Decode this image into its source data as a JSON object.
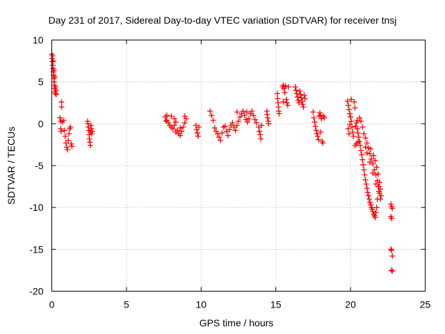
{
  "chart_data": {
    "type": "scatter",
    "title": "Day 231 of 2017, Sidereal Day-to-day VTEC variation (SDTVAR) for receiver tnsj",
    "xlabel": "GPS time / hours",
    "ylabel": "SDTVAR / TECUs",
    "xlim": [
      0,
      25
    ],
    "ylim": [
      -20,
      10
    ],
    "xticks": [
      0,
      5,
      10,
      15,
      20,
      25
    ],
    "yticks": [
      -20,
      -15,
      -10,
      -5,
      0,
      5,
      10
    ],
    "grid": true,
    "marker": "+",
    "color": "#ff0000",
    "series": [
      {
        "name": "SDTVAR",
        "points": [
          [
            0.0,
            8.3
          ],
          [
            0.02,
            7.8
          ],
          [
            0.04,
            7.4
          ],
          [
            0.06,
            7.0
          ],
          [
            0.08,
            6.6
          ],
          [
            0.1,
            6.2
          ],
          [
            0.12,
            5.8
          ],
          [
            0.14,
            5.4
          ],
          [
            0.16,
            5.0
          ],
          [
            0.18,
            4.6
          ],
          [
            0.2,
            4.2
          ],
          [
            0.22,
            3.8
          ],
          [
            0.24,
            3.6
          ],
          [
            0.05,
            8.1
          ],
          [
            0.1,
            7.5
          ],
          [
            0.15,
            6.4
          ],
          [
            0.2,
            5.6
          ],
          [
            0.25,
            4.4
          ],
          [
            0.28,
            4.0
          ],
          [
            0.3,
            3.5
          ],
          [
            0.55,
            0.7
          ],
          [
            0.6,
            0.3
          ],
          [
            0.6,
            -0.6
          ],
          [
            0.62,
            -0.9
          ],
          [
            0.65,
            2.6
          ],
          [
            0.66,
            2.0
          ],
          [
            0.7,
            0.2
          ],
          [
            0.8,
            0.4
          ],
          [
            0.85,
            -0.8
          ],
          [
            0.9,
            -1.5
          ],
          [
            0.95,
            -2.3
          ],
          [
            1.0,
            -2.8
          ],
          [
            1.05,
            -3.1
          ],
          [
            1.1,
            -2.0
          ],
          [
            1.15,
            -1.2
          ],
          [
            1.2,
            -0.6
          ],
          [
            1.25,
            -0.4
          ],
          [
            1.3,
            -2.4
          ],
          [
            1.35,
            -2.7
          ],
          [
            2.4,
            0.3
          ],
          [
            2.42,
            0.0
          ],
          [
            2.45,
            -0.4
          ],
          [
            2.48,
            -0.8
          ],
          [
            2.5,
            -1.3
          ],
          [
            2.52,
            -1.8
          ],
          [
            2.55,
            -2.2
          ],
          [
            2.58,
            -2.6
          ],
          [
            2.6,
            -1.0
          ],
          [
            2.62,
            -0.2
          ],
          [
            2.65,
            -0.6
          ],
          [
            2.68,
            -1.2
          ],
          [
            2.7,
            -0.9
          ],
          [
            7.6,
            0.8
          ],
          [
            7.7,
            0.4
          ],
          [
            7.8,
            0.1
          ],
          [
            7.9,
            -0.2
          ],
          [
            8.0,
            -0.4
          ],
          [
            8.1,
            -0.6
          ],
          [
            8.2,
            0.6
          ],
          [
            8.3,
            0.2
          ],
          [
            8.4,
            -0.8
          ],
          [
            8.5,
            -1.2
          ],
          [
            8.6,
            -1.4
          ],
          [
            8.7,
            -0.9
          ],
          [
            8.8,
            -0.4
          ],
          [
            8.9,
            0.1
          ],
          [
            9.0,
            0.6
          ],
          [
            7.7,
            1.0
          ],
          [
            8.0,
            0.9
          ],
          [
            8.3,
            -1.0
          ],
          [
            8.6,
            -0.5
          ],
          [
            8.9,
            0.9
          ],
          [
            7.65,
            0.3
          ],
          [
            8.2,
            -0.2
          ],
          [
            9.65,
            -0.2
          ],
          [
            9.7,
            -0.7
          ],
          [
            9.75,
            -1.1
          ],
          [
            9.8,
            -1.5
          ],
          [
            9.85,
            -0.4
          ],
          [
            10.6,
            1.5
          ],
          [
            10.7,
            1.0
          ],
          [
            10.8,
            0.4
          ],
          [
            10.9,
            -0.5
          ],
          [
            11.0,
            -0.9
          ],
          [
            11.1,
            -1.2
          ],
          [
            11.2,
            -1.6
          ],
          [
            11.3,
            -2.0
          ],
          [
            11.4,
            -1.1
          ],
          [
            11.5,
            -0.4
          ],
          [
            11.6,
            -0.3
          ],
          [
            11.7,
            -0.9
          ],
          [
            11.8,
            -1.4
          ],
          [
            11.9,
            -0.7
          ],
          [
            12.0,
            -0.2
          ],
          [
            12.1,
            0.1
          ],
          [
            12.2,
            -0.4
          ],
          [
            12.3,
            -0.8
          ],
          [
            12.4,
            -0.2
          ],
          [
            12.5,
            0.3
          ],
          [
            12.6,
            0.8
          ],
          [
            12.7,
            1.2
          ],
          [
            12.8,
            1.5
          ],
          [
            12.9,
            1.0
          ],
          [
            13.0,
            0.5
          ],
          [
            13.1,
            0.2
          ],
          [
            13.2,
            0.6
          ],
          [
            13.3,
            1.2
          ],
          [
            13.4,
            1.5
          ],
          [
            13.5,
            1.0
          ],
          [
            13.6,
            0.5
          ],
          [
            13.7,
            0.1
          ],
          [
            12.4,
            1.4
          ],
          [
            13.05,
            1.4
          ],
          [
            13.85,
            -0.4
          ],
          [
            13.9,
            -0.9
          ],
          [
            13.95,
            -1.3
          ],
          [
            14.0,
            -1.8
          ],
          [
            14.05,
            -0.2
          ],
          [
            14.4,
            1.5
          ],
          [
            14.42,
            1.1
          ],
          [
            14.45,
            0.7
          ],
          [
            14.5,
            0.3
          ],
          [
            14.52,
            0.0
          ],
          [
            15.1,
            3.6
          ],
          [
            15.12,
            3.0
          ],
          [
            15.15,
            2.5
          ],
          [
            15.18,
            2.0
          ],
          [
            15.2,
            1.5
          ],
          [
            15.22,
            1.2
          ],
          [
            15.45,
            4.4
          ],
          [
            15.5,
            4.6
          ],
          [
            15.55,
            4.2
          ],
          [
            15.6,
            3.7
          ],
          [
            15.65,
            4.5
          ],
          [
            15.7,
            2.9
          ],
          [
            15.75,
            2.5
          ],
          [
            15.8,
            2.2
          ],
          [
            15.85,
            4.4
          ],
          [
            15.5,
            2.6
          ],
          [
            16.3,
            4.4
          ],
          [
            16.35,
            4.0
          ],
          [
            16.4,
            3.6
          ],
          [
            16.45,
            3.2
          ],
          [
            16.5,
            2.8
          ],
          [
            16.55,
            2.5
          ],
          [
            16.6,
            3.9
          ],
          [
            16.65,
            3.5
          ],
          [
            16.7,
            3.1
          ],
          [
            16.75,
            2.7
          ],
          [
            16.8,
            2.3
          ],
          [
            16.85,
            2.0
          ],
          [
            16.9,
            3.4
          ],
          [
            16.95,
            3.0
          ],
          [
            17.5,
            1.4
          ],
          [
            17.55,
            0.7
          ],
          [
            17.6,
            0.2
          ],
          [
            17.65,
            -0.3
          ],
          [
            17.7,
            -0.8
          ],
          [
            17.75,
            -1.2
          ],
          [
            17.8,
            -1.5
          ],
          [
            17.85,
            -1.9
          ],
          [
            17.9,
            0.9
          ],
          [
            17.95,
            1.3
          ],
          [
            18.0,
            1.0
          ],
          [
            18.05,
            0.6
          ],
          [
            18.1,
            -2.1
          ],
          [
            18.15,
            -2.3
          ],
          [
            18.2,
            0.9
          ],
          [
            18.25,
            0.7
          ],
          [
            18.0,
            -1.0
          ],
          [
            19.8,
            2.7
          ],
          [
            19.85,
            2.2
          ],
          [
            19.9,
            1.7
          ],
          [
            19.95,
            1.2
          ],
          [
            20.0,
            0.8
          ],
          [
            20.05,
            0.3
          ],
          [
            20.1,
            -0.4
          ],
          [
            20.15,
            -1.0
          ],
          [
            20.2,
            -1.5
          ],
          [
            20.25,
            2.6
          ],
          [
            20.3,
            1.9
          ],
          [
            19.85,
            -0.6
          ],
          [
            19.9,
            -1.2
          ],
          [
            20.05,
            2.9
          ],
          [
            19.95,
            -0.1
          ],
          [
            20.4,
            0.1
          ],
          [
            20.45,
            -0.6
          ],
          [
            20.5,
            -1.1
          ],
          [
            20.55,
            -1.6
          ],
          [
            20.6,
            -2.1
          ],
          [
            20.65,
            -2.6
          ],
          [
            20.7,
            -3.2
          ],
          [
            20.75,
            -3.7
          ],
          [
            20.8,
            -4.3
          ],
          [
            20.85,
            -4.9
          ],
          [
            20.9,
            -5.5
          ],
          [
            20.95,
            -6.1
          ],
          [
            21.0,
            -6.7
          ],
          [
            21.05,
            -7.2
          ],
          [
            21.1,
            -7.7
          ],
          [
            21.15,
            -8.2
          ],
          [
            21.2,
            -8.6
          ],
          [
            21.25,
            -9.0
          ],
          [
            21.3,
            -9.4
          ],
          [
            21.35,
            -9.7
          ],
          [
            21.4,
            -10.0
          ],
          [
            21.45,
            -10.2
          ],
          [
            21.5,
            -10.5
          ],
          [
            21.55,
            -10.8
          ],
          [
            21.6,
            -11.0
          ],
          [
            21.65,
            -11.2
          ],
          [
            21.7,
            -10.6
          ],
          [
            21.75,
            -10.0
          ],
          [
            21.8,
            -9.0
          ],
          [
            21.85,
            -7.5
          ],
          [
            20.6,
            0.7
          ],
          [
            20.7,
            0.3
          ],
          [
            20.8,
            -0.4
          ],
          [
            20.9,
            -1.2
          ],
          [
            21.0,
            -1.7
          ],
          [
            21.1,
            -2.3
          ],
          [
            21.2,
            -2.9
          ],
          [
            21.3,
            -3.6
          ],
          [
            21.4,
            -4.2
          ],
          [
            21.5,
            -4.8
          ],
          [
            21.6,
            -5.5
          ],
          [
            21.7,
            -6.1
          ],
          [
            21.8,
            -6.8
          ],
          [
            21.9,
            -7.5
          ],
          [
            21.95,
            -8.3
          ],
          [
            22.0,
            -9.0
          ],
          [
            21.9,
            -8.1
          ],
          [
            21.7,
            -7.2
          ],
          [
            21.5,
            -5.9
          ],
          [
            21.3,
            -4.6
          ],
          [
            21.1,
            -3.5
          ],
          [
            21.0,
            -2.8
          ],
          [
            21.35,
            -3.0
          ],
          [
            21.55,
            -3.8
          ],
          [
            21.65,
            -4.4
          ],
          [
            21.75,
            -5.2
          ],
          [
            21.85,
            -6.0
          ],
          [
            21.95,
            -7.0
          ],
          [
            22.0,
            -7.8
          ],
          [
            22.05,
            -8.6
          ],
          [
            20.4,
            -2.4
          ],
          [
            20.3,
            -2.6
          ],
          [
            20.5,
            -2.2
          ],
          [
            20.35,
            -0.3
          ],
          [
            20.45,
            0.4
          ],
          [
            22.7,
            -9.6
          ],
          [
            22.75,
            -9.9
          ],
          [
            22.8,
            -10.1
          ],
          [
            22.7,
            -11.1
          ],
          [
            22.75,
            -11.3
          ],
          [
            22.7,
            -15.0
          ],
          [
            22.75,
            -15.1
          ],
          [
            22.8,
            -15.8
          ],
          [
            22.75,
            -17.5
          ],
          [
            22.8,
            -17.6
          ]
        ]
      }
    ]
  }
}
